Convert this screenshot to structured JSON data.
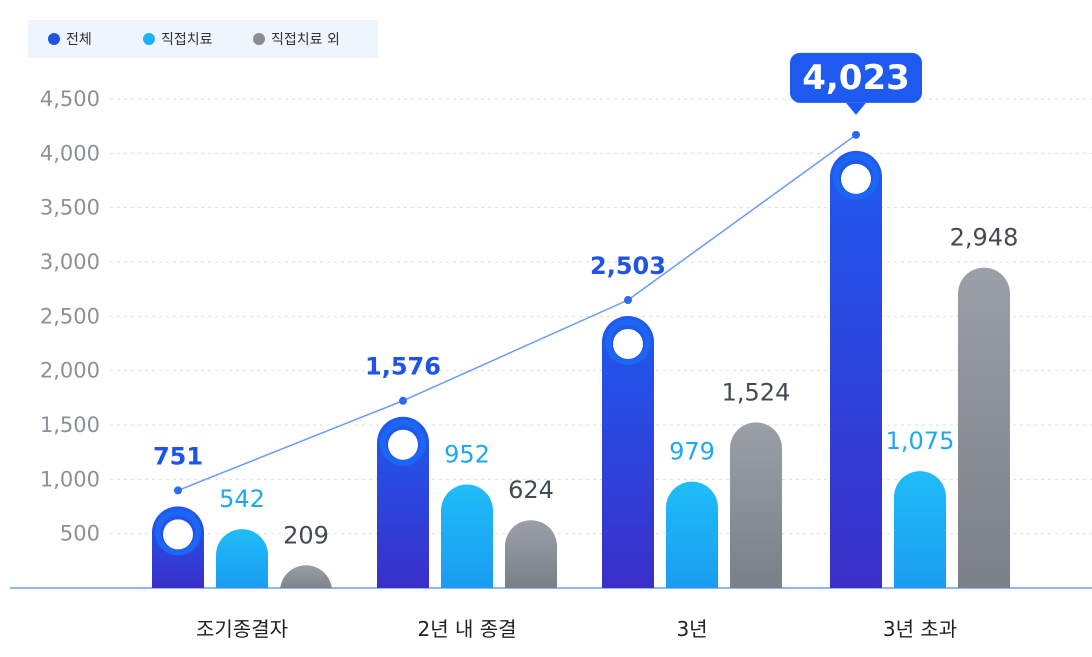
{
  "legend": [
    {
      "label": "전체",
      "color": "#1f55e6"
    },
    {
      "label": "직접치료",
      "color": "#1fb0f5"
    },
    {
      "label": "직접치료 외",
      "color": "#8a8f97"
    }
  ],
  "chart_data": {
    "type": "bar",
    "categories": [
      "조기종결자",
      "2년 내 종결",
      "3년",
      "3년 초과"
    ],
    "series": [
      {
        "name": "전체",
        "values": [
          751,
          1576,
          2503,
          4023
        ],
        "color": "#1f55e6"
      },
      {
        "name": "직접치료",
        "values": [
          542,
          952,
          979,
          1075
        ],
        "color": "#1fb0f5"
      },
      {
        "name": "직접치료 외",
        "values": [
          209,
          624,
          1524,
          2948
        ],
        "color": "#8a8f97"
      }
    ],
    "value_labels": {
      "전체": [
        "751",
        "1,576",
        "2,503",
        "4,023"
      ],
      "직접치료": [
        "542",
        "952",
        "979",
        "1,075"
      ],
      "직접치료 외": [
        "209",
        "624",
        "1,524",
        "2,948"
      ]
    },
    "line_series": "전체",
    "y_ticks": [
      500,
      1000,
      1500,
      2000,
      2500,
      3000,
      3500,
      4000,
      4500
    ],
    "y_tick_labels": [
      "500",
      "1,000",
      "1,500",
      "2,000",
      "2,500",
      "3,000",
      "3,500",
      "4,000",
      "4,500"
    ],
    "ylim": [
      0,
      4500
    ],
    "grid": true,
    "highlight": {
      "series": "전체",
      "category": "3년 초과",
      "label": "4,023"
    },
    "legend_position": "top-left"
  }
}
